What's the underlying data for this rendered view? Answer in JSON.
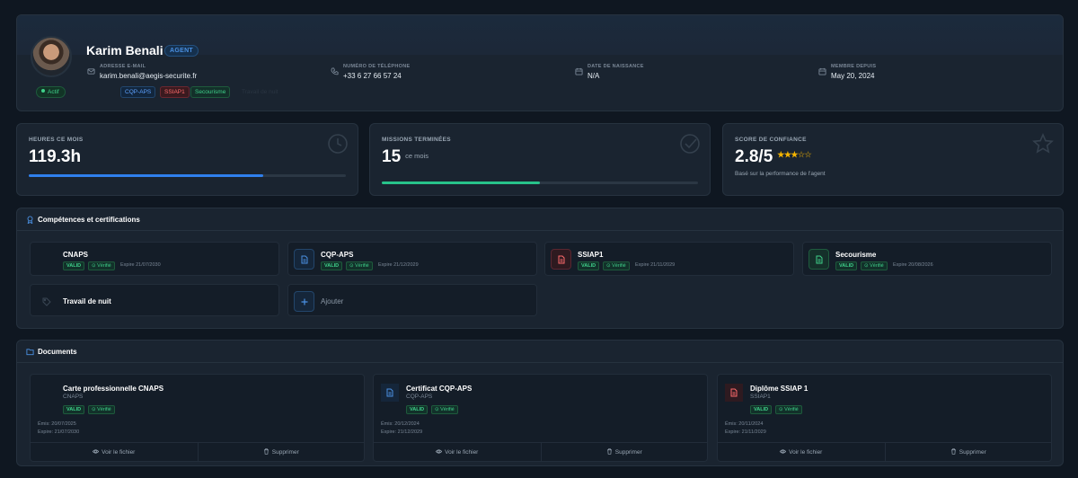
{
  "profile": {
    "name": "Karim Benali",
    "role": "AGENT",
    "status": "Actif",
    "email_label": "ADRESSE E-MAIL",
    "email": "karim.benali@aegis-securite.fr",
    "phone_label": "NUMÉRO DE TÉLÉPHONE",
    "phone": "+33 6 27 66 57 24",
    "birth_label": "DATE DE NAISSANCE",
    "birth": "N/A",
    "member_label": "MEMBRE DEPUIS",
    "member": "May 20, 2024",
    "tags": [
      "CQP-APS",
      "SSIAP1",
      "Secourisme",
      "Travail de nuit"
    ]
  },
  "stats": {
    "hours": {
      "label": "HEURES CE MOIS",
      "value": "119.3h",
      "progress": 0.74
    },
    "missions": {
      "label": "MISSIONS TERMINÉES",
      "value": "15",
      "sub": "ce mois",
      "progress": 0.5
    },
    "trust": {
      "label": "SCORE DE CONFIANCE",
      "value": "2.8/5",
      "rating": 3,
      "max": 5,
      "stars_on": "★★★",
      "stars_off": "☆☆",
      "note": "Basé sur la performance de l'agent"
    }
  },
  "skills": {
    "title": "Compétences et certifications",
    "valid": "VALID",
    "verified": "Vérifié",
    "items": [
      {
        "name": "CNAPS",
        "expire": "Expire 21/07/2030"
      },
      {
        "name": "CQP-APS",
        "expire": "Expire 21/12/2029"
      },
      {
        "name": "SSIAP1",
        "expire": "Expire 21/11/2029"
      },
      {
        "name": "Secourisme",
        "expire": "Expire 20/08/2026"
      },
      {
        "name": "Travail de nuit"
      }
    ],
    "add": "Ajouter"
  },
  "documents": {
    "title": "Documents",
    "view": "Voir le fichier",
    "delete": "Supprimer",
    "valid": "VALID",
    "verified": "Vérifié",
    "items": [
      {
        "title": "Carte professionnelle CNAPS",
        "sub": "CNAPS",
        "issued": "Émis: 20/07/2025",
        "expires": "Expire: 21/07/2030"
      },
      {
        "title": "Certificat CQP-APS",
        "sub": "CQP-APS",
        "issued": "Émis: 20/12/2024",
        "expires": "Expire: 21/12/2029"
      },
      {
        "title": "Diplôme SSIAP 1",
        "sub": "SSIAP1",
        "issued": "Émis: 20/11/2024",
        "expires": "Expire: 21/11/2029"
      }
    ]
  },
  "colors": {
    "accent": "#4a90e2",
    "success": "#3fd08a",
    "danger": "#ff6b6b",
    "star": "#f5b400",
    "progress_hours": "#2f80ed",
    "progress_missions": "#27c28a"
  },
  "icons": [
    "mail-icon",
    "phone-icon",
    "calendar-icon",
    "clock-icon",
    "check-circle-icon",
    "star-icon",
    "award-icon",
    "file-icon",
    "folder-icon",
    "tag-icon",
    "plus-icon",
    "eye-icon",
    "trash-icon"
  ]
}
